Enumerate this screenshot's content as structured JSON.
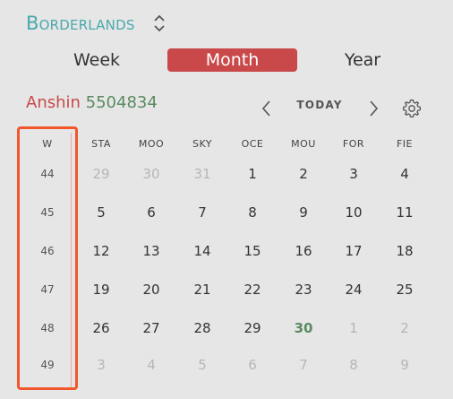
{
  "header": {
    "calendar_name": "Borderlands"
  },
  "views": {
    "week": "Week",
    "month": "Month",
    "year": "Year",
    "selected": "month"
  },
  "title": {
    "month": "Anshin",
    "year": "5504834"
  },
  "nav": {
    "today": "TODAY"
  },
  "grid": {
    "week_header": "W",
    "weekdays": [
      "STA",
      "MOO",
      "SKY",
      "OCE",
      "MOU",
      "FOR",
      "FIE"
    ],
    "weeks": [
      {
        "num": "44",
        "days": [
          {
            "d": "29",
            "other": true
          },
          {
            "d": "30",
            "other": true
          },
          {
            "d": "31",
            "other": true
          },
          {
            "d": "1"
          },
          {
            "d": "2"
          },
          {
            "d": "3"
          },
          {
            "d": "4"
          }
        ]
      },
      {
        "num": "45",
        "days": [
          {
            "d": "5"
          },
          {
            "d": "6"
          },
          {
            "d": "7"
          },
          {
            "d": "8"
          },
          {
            "d": "9"
          },
          {
            "d": "10"
          },
          {
            "d": "11"
          }
        ]
      },
      {
        "num": "46",
        "days": [
          {
            "d": "12"
          },
          {
            "d": "13"
          },
          {
            "d": "14"
          },
          {
            "d": "15"
          },
          {
            "d": "16"
          },
          {
            "d": "17"
          },
          {
            "d": "18"
          }
        ]
      },
      {
        "num": "47",
        "days": [
          {
            "d": "19"
          },
          {
            "d": "20"
          },
          {
            "d": "21"
          },
          {
            "d": "22"
          },
          {
            "d": "23"
          },
          {
            "d": "24"
          },
          {
            "d": "25"
          }
        ]
      },
      {
        "num": "48",
        "days": [
          {
            "d": "26"
          },
          {
            "d": "27"
          },
          {
            "d": "28"
          },
          {
            "d": "29"
          },
          {
            "d": "30",
            "today": true
          },
          {
            "d": "1",
            "other": true
          },
          {
            "d": "2",
            "other": true
          }
        ]
      },
      {
        "num": "49",
        "days": [
          {
            "d": "3",
            "other": true
          },
          {
            "d": "4",
            "other": true
          },
          {
            "d": "5",
            "other": true
          },
          {
            "d": "6",
            "other": true
          },
          {
            "d": "7",
            "other": true
          },
          {
            "d": "8",
            "other": true
          },
          {
            "d": "9",
            "other": true
          }
        ]
      }
    ]
  },
  "colors": {
    "accent": "#c9494b",
    "brand": "#4aa9ab",
    "today": "#5a8a60",
    "highlight_border": "#f2572c",
    "muted": "#b6b6b6"
  }
}
